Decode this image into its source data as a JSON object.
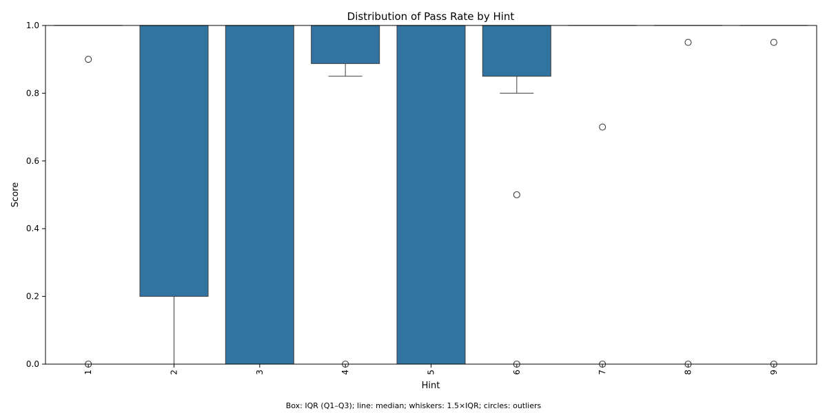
{
  "chart_data": {
    "type": "box",
    "title": "Distribution of Pass Rate by Hint",
    "xlabel": "Hint",
    "ylabel": "Score",
    "ylim": [
      0,
      1
    ],
    "yticks": [
      "0.0",
      "0.2",
      "0.4",
      "0.6",
      "0.8",
      "1.0"
    ],
    "categories": [
      "1",
      "2",
      "3",
      "4",
      "5",
      "6",
      "7",
      "8",
      "9"
    ],
    "box_color": "#3274a1",
    "edge_color": "#3d3d3d",
    "boxes": [
      {
        "category": "1",
        "q1": 1.0,
        "median": 1.0,
        "q3": 1.0,
        "whisker_low": 1.0,
        "whisker_high": 1.0,
        "outliers": [
          0.9,
          0.0
        ]
      },
      {
        "category": "2",
        "q1": 0.2,
        "median": 1.0,
        "q3": 1.0,
        "whisker_low": 0.0,
        "whisker_high": 1.0,
        "outliers": []
      },
      {
        "category": "3",
        "q1": 0.0,
        "median": 1.0,
        "q3": 1.0,
        "whisker_low": 0.0,
        "whisker_high": 1.0,
        "outliers": []
      },
      {
        "category": "4",
        "q1": 0.8875,
        "median": 1.0,
        "q3": 1.0,
        "whisker_low": 0.85,
        "whisker_high": 1.0,
        "outliers": [
          0.0
        ]
      },
      {
        "category": "5",
        "q1": 0.0,
        "median": 1.0,
        "q3": 1.0,
        "whisker_low": 0.0,
        "whisker_high": 1.0,
        "outliers": []
      },
      {
        "category": "6",
        "q1": 0.85,
        "median": 1.0,
        "q3": 1.0,
        "whisker_low": 0.8,
        "whisker_high": 1.0,
        "outliers": [
          0.5,
          0.0
        ]
      },
      {
        "category": "7",
        "q1": 1.0,
        "median": 1.0,
        "q3": 1.0,
        "whisker_low": 1.0,
        "whisker_high": 1.0,
        "outliers": [
          0.7,
          0.0
        ]
      },
      {
        "category": "8",
        "q1": 1.0,
        "median": 1.0,
        "q3": 1.0,
        "whisker_low": 1.0,
        "whisker_high": 1.0,
        "outliers": [
          0.95,
          0.0
        ]
      },
      {
        "category": "9",
        "q1": 1.0,
        "median": 1.0,
        "q3": 1.0,
        "whisker_low": 1.0,
        "whisker_high": 1.0,
        "outliers": [
          0.95,
          0.0
        ]
      }
    ],
    "grid": false,
    "legend": "none",
    "caption": "Box: IQR (Q1–Q3); line: median; whiskers: 1.5×IQR; circles: outliers"
  }
}
